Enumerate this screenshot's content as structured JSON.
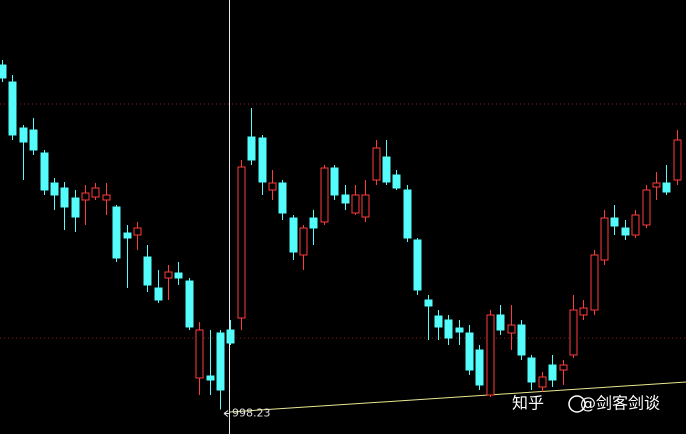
{
  "chart_data": {
    "type": "candlestick",
    "up_color": "#ff3c3c",
    "down_color": "#54fcfc",
    "ylim": [
      986,
      1203
    ],
    "open": [
      1170.5,
      1162,
      1139,
      1138,
      1126.5,
      1111.5,
      1109,
      1104,
      1103,
      1104.5,
      1103,
      1099.5,
      1086.5,
      1085.5,
      1074.5,
      1059,
      1064,
      1066.5,
      1062.5,
      1014,
      1015,
      1036.5,
      1038,
      1044,
      1134.5,
      1134,
      1108,
      1111.5,
      1094,
      1075.5,
      1094,
      1092,
      1119,
      1105.5,
      1096.5,
      1094.5,
      1113,
      1124.5,
      1115.5,
      1108,
      1083,
      1053,
      1045,
      1043,
      1039,
      1036.5,
      1028,
      1005.5,
      1045.5,
      1036.5,
      1040.5,
      1024,
      1009.5,
      1020.5,
      1018,
      1025.5,
      1045.5,
      1048,
      1073,
      1094,
      1089,
      1085.5,
      1090.5,
      1109.5,
      1111.5,
      1113
    ],
    "high": [
      1173,
      1165.5,
      1140.5,
      1144,
      1128,
      1114,
      1112,
      1108,
      1110.5,
      1111.5,
      1111.5,
      1100.5,
      1090.5,
      1092,
      1080.5,
      1068,
      1070.5,
      1072,
      1064,
      1042,
      1038,
      1038,
      1043,
      1123,
      1149,
      1135.5,
      1118,
      1113,
      1095.5,
      1090.5,
      1098,
      1120.5,
      1120.5,
      1110.5,
      1110.5,
      1113,
      1133,
      1133,
      1118,
      1110.5,
      1084,
      1055.5,
      1048,
      1045.5,
      1043,
      1040.5,
      1030.5,
      1048,
      1050.5,
      1050.5,
      1043,
      1025.5,
      1017,
      1025.5,
      1023,
      1055.5,
      1053,
      1078,
      1098,
      1100.5,
      1093,
      1098,
      1110.5,
      1117,
      1120.5,
      1138
    ],
    "low": [
      1162,
      1133,
      1113,
      1125.5,
      1105.5,
      1098,
      1088,
      1087,
      1090.5,
      1103,
      1095.5,
      1072,
      1059,
      1078,
      1057,
      1051.5,
      1053,
      1060.5,
      1038,
      1005.5,
      1005.5,
      998.23,
      1030.5,
      1038,
      1120.5,
      1105.5,
      1103,
      1093,
      1073,
      1068,
      1080.5,
      1090.5,
      1103,
      1098,
      1095.5,
      1092,
      1110.5,
      1110.5,
      1108,
      1082,
      1055.5,
      1033,
      1033,
      1030.5,
      1030.5,
      1015.5,
      1008,
      1004.5,
      1035.5,
      1028,
      1023,
      1008,
      1007,
      1009.5,
      1010.5,
      1024,
      1043,
      1045.5,
      1070.5,
      1085.5,
      1083,
      1084,
      1089,
      1103,
      1105.5,
      1110.5
    ],
    "close": [
      1164,
      1135.5,
      1132,
      1128,
      1108,
      1105.5,
      1099.5,
      1094.5,
      1106.5,
      1109,
      1105.5,
      1074,
      1084,
      1089,
      1060.5,
      1053,
      1067,
      1064,
      1039.5,
      1038,
      1013,
      1008,
      1031.5,
      1119.5,
      1123,
      1112,
      1111.5,
      1096.5,
      1077,
      1089,
      1089,
      1119,
      1105.5,
      1101.5,
      1105.5,
      1105.5,
      1129,
      1112,
      1109,
      1084,
      1058,
      1050,
      1039.5,
      1034,
      1037,
      1018,
      1010.5,
      1045.5,
      1038,
      1040.5,
      1025.5,
      1012,
      1014.5,
      1013,
      1020.5,
      1048,
      1049,
      1075.5,
      1094,
      1090,
      1085.5,
      1095.5,
      1108,
      1111.5,
      1107,
      1133
    ],
    "low_annotation": 998.23
  },
  "watermark": {
    "platform": "知乎",
    "author": "@剑客剑谈"
  }
}
